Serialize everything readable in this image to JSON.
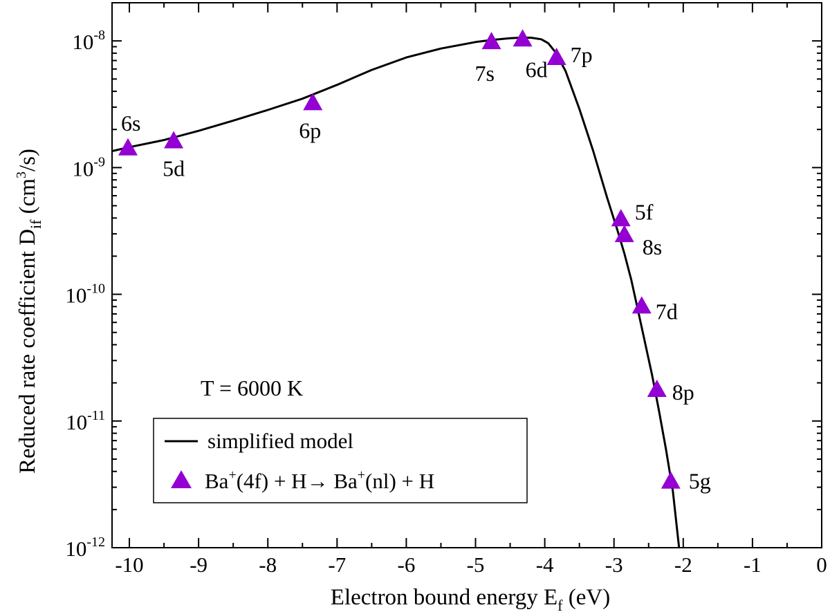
{
  "chart_data": {
    "type": "line",
    "xlabel": "Electron bound energy E",
    "xlabel_sub": "f",
    "xlabel_unit": " (eV)",
    "ylabel": "Reduced rate coefficient D",
    "ylabel_sub": "if",
    "ylabel_unit_pre": " (cm",
    "ylabel_unit_sup": "3",
    "ylabel_unit_post": "/s)",
    "xlim": [
      -10.25,
      0
    ],
    "ylim": [
      1e-12,
      2e-08
    ],
    "y_scale": "log",
    "x_ticks": [
      -10,
      -9,
      -8,
      -7,
      -6,
      -5,
      -4,
      -3,
      -2,
      -1,
      0
    ],
    "x_tick_labels": [
      "-10",
      "-9",
      "-8",
      "-7",
      "-6",
      "-5",
      "-4",
      "-3",
      "-2",
      "-1",
      "0"
    ],
    "y_ticks": [
      {
        "value": 1e-08,
        "base": "10",
        "exp": "-8"
      },
      {
        "value": 1e-09,
        "base": "10",
        "exp": "-9"
      },
      {
        "value": 1e-10,
        "base": "10",
        "exp": "-10"
      },
      {
        "value": 1e-11,
        "base": "10",
        "exp": "-11"
      },
      {
        "value": 1e-12,
        "base": "10",
        "exp": "-12"
      }
    ],
    "annotation": "T = 6000 K",
    "legend_position": "bottom-left",
    "series": [
      {
        "name": "simplified model",
        "kind": "line",
        "color": "#000000",
        "x": [
          -10.25,
          -10.0,
          -9.5,
          -9.0,
          -8.5,
          -8.0,
          -7.5,
          -7.0,
          -6.5,
          -6.0,
          -5.5,
          -5.0,
          -4.75,
          -4.5,
          -4.35,
          -4.2,
          -4.05,
          -3.95,
          -3.85,
          -3.7,
          -3.5,
          -3.3,
          -3.1,
          -2.95,
          -2.85,
          -2.75,
          -2.6,
          -2.45,
          -2.35,
          -2.25,
          -2.15,
          -2.06
        ],
        "y": [
          1.35e-09,
          1.45e-09,
          1.65e-09,
          1.95e-09,
          2.35e-09,
          2.85e-09,
          3.5e-09,
          4.5e-09,
          5.9e-09,
          7.4e-09,
          8.7e-09,
          9.8e-09,
          1.02e-08,
          1.05e-08,
          1.06e-08,
          1.06e-08,
          1.03e-08,
          9.6e-09,
          8.2e-09,
          5.8e-09,
          2.9e-09,
          1.35e-09,
          5.8e-10,
          3.2e-10,
          2.1e-10,
          1.3e-10,
          5.5e-11,
          2.3e-11,
          1.2e-11,
          6e-12,
          2.8e-12,
          1e-12
        ]
      },
      {
        "name": "Ba⁺(4f) + H→ Ba⁺(nl) + H",
        "legend_parts": [
          "Ba",
          "+",
          "(4f) + H",
          "→",
          " Ba",
          "+",
          "(nl) + H"
        ],
        "kind": "scatter",
        "marker": "triangle",
        "color": "#9400d3",
        "points": [
          {
            "label": "6s",
            "x": -10.02,
            "y": 1.45e-09
          },
          {
            "label": "5d",
            "x": -9.36,
            "y": 1.65e-09
          },
          {
            "label": "6p",
            "x": -7.35,
            "y": 3.3e-09
          },
          {
            "label": "7s",
            "x": -4.77,
            "y": 1e-08
          },
          {
            "label": "6d",
            "x": -4.32,
            "y": 1.05e-08
          },
          {
            "label": "7p",
            "x": -3.83,
            "y": 7.5e-09
          },
          {
            "label": "5f",
            "x": -2.9,
            "y": 4e-10
          },
          {
            "label": "8s",
            "x": -2.85,
            "y": 3e-10
          },
          {
            "label": "7d",
            "x": -2.6,
            "y": 8.2e-11
          },
          {
            "label": "8p",
            "x": -2.38,
            "y": 1.8e-11
          },
          {
            "label": "5g",
            "x": -2.18,
            "y": 3.4e-12
          }
        ]
      }
    ]
  }
}
